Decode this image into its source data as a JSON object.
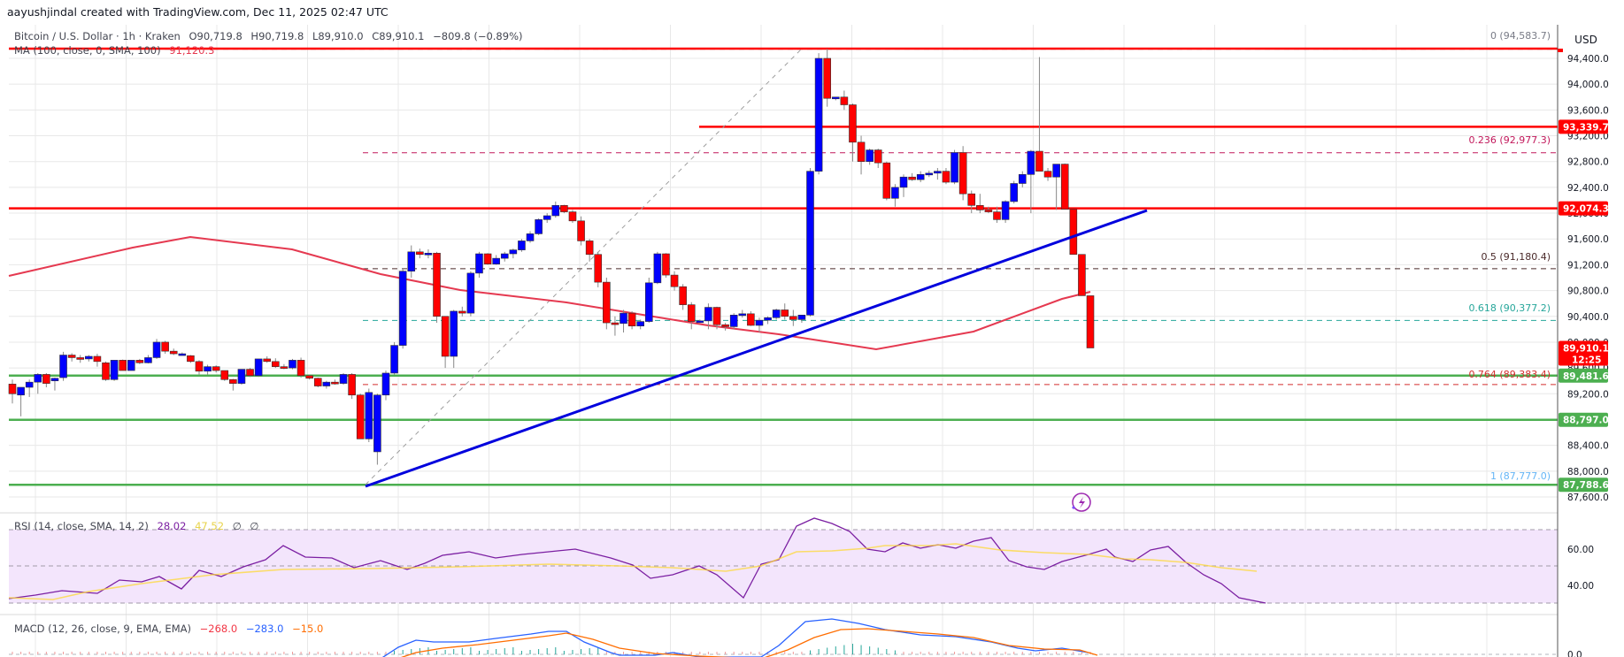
{
  "header": {
    "credit": "aayushjindal created with TradingView.com, Dec 11, 2025 02:47 UTC"
  },
  "legend": {
    "symbol": "Bitcoin / U.S. Dollar · 1h · Kraken",
    "open": "O90,719.8",
    "high": "H90,719.8",
    "low": "L89,910.0",
    "close": "C89,910.1",
    "change": "−809.8 (−0.89%)",
    "ma_label": "MA (100, close, 0, SMA, 100)",
    "ma_value": "91,120.3"
  },
  "rsi_legend": {
    "label": "RSI (14, close, SMA, 14, 2)",
    "rsi_value": "28.02",
    "sma_value": "47.52",
    "extra1": "∅",
    "extra2": "∅"
  },
  "macd_legend": {
    "label": "MACD (12, 26, close, 9, EMA, EMA)",
    "macd": "−268.0",
    "signal": "−283.0",
    "hist": "−15.0"
  },
  "axis": {
    "currency": "USD",
    "price_ticks": [
      "94,400.0",
      "94,000.0",
      "93,600.0",
      "93,200.0",
      "92,800.0",
      "92,400.0",
      "92,000.0",
      "91,600.0",
      "91,200.0",
      "90,800.0",
      "90,400.0",
      "90,000.0",
      "89,600.0",
      "89,200.0",
      "88,800.0",
      "88,400.0",
      "88,000.0",
      "87,600.0"
    ],
    "rsi_ticks": [
      "60.00",
      "40.00"
    ],
    "macd_ticks": [
      "0.0"
    ]
  },
  "price_tags": [
    {
      "label": "93,339.7",
      "color": "#ff0000"
    },
    {
      "label": "92,074.3",
      "color": "#ff0000"
    },
    {
      "label": "89,910.1",
      "sub": "12:25",
      "color": "#ff0000"
    },
    {
      "label": "89,481.6",
      "color": "#4caf50"
    },
    {
      "label": "88,797.0",
      "color": "#4caf50"
    },
    {
      "label": "87,788.6",
      "color": "#4caf50"
    }
  ],
  "fib_levels": [
    {
      "label": "0 (94,583.7)",
      "color": "#787b86"
    },
    {
      "label": "0.236 (92,977.3)",
      "color": "#c2185b"
    },
    {
      "label": "0.5 (91,180.4)",
      "color": "#4a2a2a"
    },
    {
      "label": "0.618 (90,377.2)",
      "color": "#26a69a"
    },
    {
      "label": "0.764 (89,383.4)",
      "color": "#d32f2f"
    },
    {
      "label": "1 (87,777.0)",
      "color": "#64b5f6"
    }
  ],
  "colors": {
    "up": "#0000ff",
    "down": "#ff0000",
    "ma": "#e53950",
    "resistance": "#ff0000",
    "support": "#4caf50",
    "trendline": "#0000dd",
    "rsi": "#7b1fa2",
    "rsi_sma": "#fdd835",
    "macd": "#2962ff",
    "signal": "#ff6d00"
  },
  "chart_data": {
    "type": "candlestick",
    "title": "Bitcoin / U.S. Dollar · 1h · Kraken",
    "ylabel": "USD",
    "ylim": [
      87500,
      94700
    ],
    "horizontal_lines": {
      "resistance": [
        94583.7,
        93339.7,
        92074.3
      ],
      "support": [
        89481.6,
        88797.0,
        87788.6
      ]
    },
    "fibonacci": {
      "0": 94583.7,
      "0.236": 92977.3,
      "0.5": 91180.4,
      "0.618": 90377.2,
      "0.764": 89383.4,
      "1": 87777.0
    },
    "trendline": {
      "from": [
        87777,
        "idx 50"
      ],
      "to": [
        92074,
        "idx 160"
      ]
    },
    "last": {
      "open": 90719.8,
      "high": 90719.8,
      "low": 89910.0,
      "close": 89910.1,
      "change": -809.8,
      "change_pct": -0.89
    },
    "ma100_last": 91120.3,
    "candles": [
      [
        89350,
        89420,
        89050,
        89200
      ],
      [
        89180,
        89300,
        88850,
        89300
      ],
      [
        89300,
        89420,
        89150,
        89380
      ],
      [
        89380,
        89520,
        89200,
        89500
      ],
      [
        89500,
        89520,
        89300,
        89360
      ],
      [
        89400,
        89450,
        89250,
        89440
      ],
      [
        89450,
        89850,
        89400,
        89800
      ],
      [
        89800,
        89830,
        89700,
        89760
      ],
      [
        89760,
        89800,
        89680,
        89740
      ],
      [
        89740,
        89800,
        89700,
        89780
      ],
      [
        89780,
        89820,
        89620,
        89700
      ],
      [
        89680,
        89700,
        89400,
        89420
      ],
      [
        89420,
        89720,
        89400,
        89720
      ],
      [
        89720,
        89730,
        89560,
        89560
      ],
      [
        89560,
        89720,
        89560,
        89720
      ],
      [
        89720,
        89740,
        89660,
        89680
      ],
      [
        89680,
        89800,
        89670,
        89760
      ],
      [
        89760,
        90050,
        89740,
        90000
      ],
      [
        90000,
        90020,
        89820,
        89860
      ],
      [
        89860,
        89900,
        89800,
        89820
      ],
      [
        89820,
        89840,
        89800,
        89820
      ],
      [
        89790,
        89800,
        89680,
        89700
      ],
      [
        89700,
        89720,
        89500,
        89550
      ],
      [
        89550,
        89650,
        89500,
        89620
      ],
      [
        89620,
        89640,
        89530,
        89560
      ],
      [
        89560,
        89560,
        89400,
        89420
      ],
      [
        89420,
        89430,
        89250,
        89360
      ],
      [
        89360,
        89580,
        89340,
        89580
      ],
      [
        89580,
        89600,
        89460,
        89480
      ],
      [
        89480,
        89740,
        89460,
        89740
      ],
      [
        89740,
        89780,
        89680,
        89700
      ],
      [
        89700,
        89750,
        89600,
        89620
      ],
      [
        89620,
        89660,
        89580,
        89600
      ],
      [
        89600,
        89740,
        89580,
        89720
      ],
      [
        89720,
        89760,
        89450,
        89480
      ],
      [
        89480,
        89500,
        89420,
        89440
      ],
      [
        89440,
        89450,
        89300,
        89320
      ],
      [
        89320,
        89400,
        89280,
        89380
      ],
      [
        89380,
        89420,
        89340,
        89360
      ],
      [
        89360,
        89520,
        89340,
        89500
      ],
      [
        89500,
        89520,
        89120,
        89180
      ],
      [
        89180,
        89200,
        88850,
        88500
      ],
      [
        88500,
        89280,
        88450,
        89220
      ],
      [
        88300,
        89200,
        88100,
        89180
      ],
      [
        89180,
        89560,
        89100,
        89520
      ],
      [
        89520,
        90000,
        89500,
        89950
      ],
      [
        89950,
        91150,
        89900,
        91100
      ],
      [
        91100,
        91500,
        91000,
        91400
      ],
      [
        91400,
        91450,
        91300,
        91360
      ],
      [
        91360,
        91440,
        91300,
        91380
      ],
      [
        91380,
        91400,
        90300,
        90400
      ],
      [
        90400,
        90400,
        89600,
        89780
      ],
      [
        89780,
        90500,
        89600,
        90480
      ],
      [
        90480,
        90550,
        90400,
        90450
      ],
      [
        90450,
        91100,
        90400,
        91070
      ],
      [
        91070,
        91400,
        91000,
        91370
      ],
      [
        91370,
        91380,
        91200,
        91210
      ],
      [
        91210,
        91350,
        91200,
        91300
      ],
      [
        91300,
        91400,
        91250,
        91370
      ],
      [
        91370,
        91450,
        91300,
        91430
      ],
      [
        91430,
        91600,
        91400,
        91570
      ],
      [
        91570,
        91720,
        91540,
        91680
      ],
      [
        91680,
        91920,
        91660,
        91900
      ],
      [
        91900,
        92000,
        91850,
        91960
      ],
      [
        91960,
        92180,
        91930,
        92120
      ],
      [
        92120,
        92130,
        92000,
        92020
      ],
      [
        92020,
        92050,
        91850,
        91880
      ],
      [
        91880,
        91950,
        91500,
        91570
      ],
      [
        91570,
        91600,
        91250,
        91360
      ],
      [
        91360,
        91400,
        90850,
        90930
      ],
      [
        90930,
        91000,
        90200,
        90300
      ],
      [
        90300,
        90400,
        90100,
        90290
      ],
      [
        90290,
        90500,
        90150,
        90450
      ],
      [
        90450,
        90480,
        90200,
        90250
      ],
      [
        90250,
        90350,
        90200,
        90320
      ],
      [
        90320,
        91000,
        90300,
        90920
      ],
      [
        90920,
        91400,
        90900,
        91370
      ],
      [
        91370,
        91380,
        91000,
        91040
      ],
      [
        91040,
        91100,
        90800,
        90860
      ],
      [
        90860,
        90900,
        90500,
        90580
      ],
      [
        90580,
        90620,
        90200,
        90320
      ],
      [
        90320,
        90350,
        90300,
        90330
      ],
      [
        90330,
        90600,
        90200,
        90540
      ],
      [
        90540,
        90550,
        90200,
        90270
      ],
      [
        90270,
        90300,
        90180,
        90240
      ],
      [
        90240,
        90450,
        90200,
        90420
      ],
      [
        90420,
        90500,
        90380,
        90440
      ],
      [
        90440,
        90480,
        90250,
        90260
      ],
      [
        90260,
        90380,
        90150,
        90340
      ],
      [
        90340,
        90400,
        90280,
        90380
      ],
      [
        90380,
        90520,
        90350,
        90500
      ],
      [
        90500,
        90600,
        90350,
        90400
      ],
      [
        90400,
        90500,
        90250,
        90350
      ],
      [
        90350,
        90420,
        90300,
        90420
      ],
      [
        90420,
        92700,
        90400,
        92650
      ],
      [
        92650,
        94480,
        92600,
        94400
      ],
      [
        94400,
        94550,
        93650,
        93780
      ],
      [
        93780,
        93800,
        93750,
        93800
      ],
      [
        93800,
        93900,
        93600,
        93680
      ],
      [
        93680,
        93700,
        92800,
        93100
      ],
      [
        93100,
        93200,
        92600,
        92800
      ],
      [
        92800,
        93000,
        92750,
        92980
      ],
      [
        92980,
        93000,
        92700,
        92780
      ],
      [
        92780,
        92800,
        92200,
        92230
      ],
      [
        92230,
        92450,
        92100,
        92400
      ],
      [
        92400,
        92600,
        92250,
        92560
      ],
      [
        92560,
        92620,
        92500,
        92520
      ],
      [
        92520,
        92650,
        92480,
        92600
      ],
      [
        92600,
        92660,
        92560,
        92620
      ],
      [
        92620,
        92700,
        92520,
        92650
      ],
      [
        92650,
        92700,
        92450,
        92480
      ],
      [
        92480,
        92980,
        92450,
        92940
      ],
      [
        92940,
        93040,
        92200,
        92300
      ],
      [
        92300,
        92350,
        92000,
        92120
      ],
      [
        92120,
        92300,
        92000,
        92050
      ],
      [
        92050,
        92100,
        92000,
        92020
      ],
      [
        92020,
        92100,
        91850,
        91900
      ],
      [
        91900,
        92200,
        91850,
        92180
      ],
      [
        92180,
        92500,
        92150,
        92460
      ],
      [
        92460,
        92650,
        92400,
        92600
      ],
      [
        92600,
        92980,
        92000,
        92960
      ],
      [
        92960,
        94420,
        92900,
        92650
      ],
      [
        92650,
        92700,
        92500,
        92560
      ],
      [
        92560,
        92750,
        92050,
        92760
      ],
      [
        92760,
        92770,
        92060,
        92060
      ],
      [
        92060,
        92060,
        91360,
        91360
      ],
      [
        91360,
        91360,
        90720,
        90720
      ],
      [
        90719.8,
        90719.8,
        89910.0,
        89910.1
      ]
    ]
  }
}
